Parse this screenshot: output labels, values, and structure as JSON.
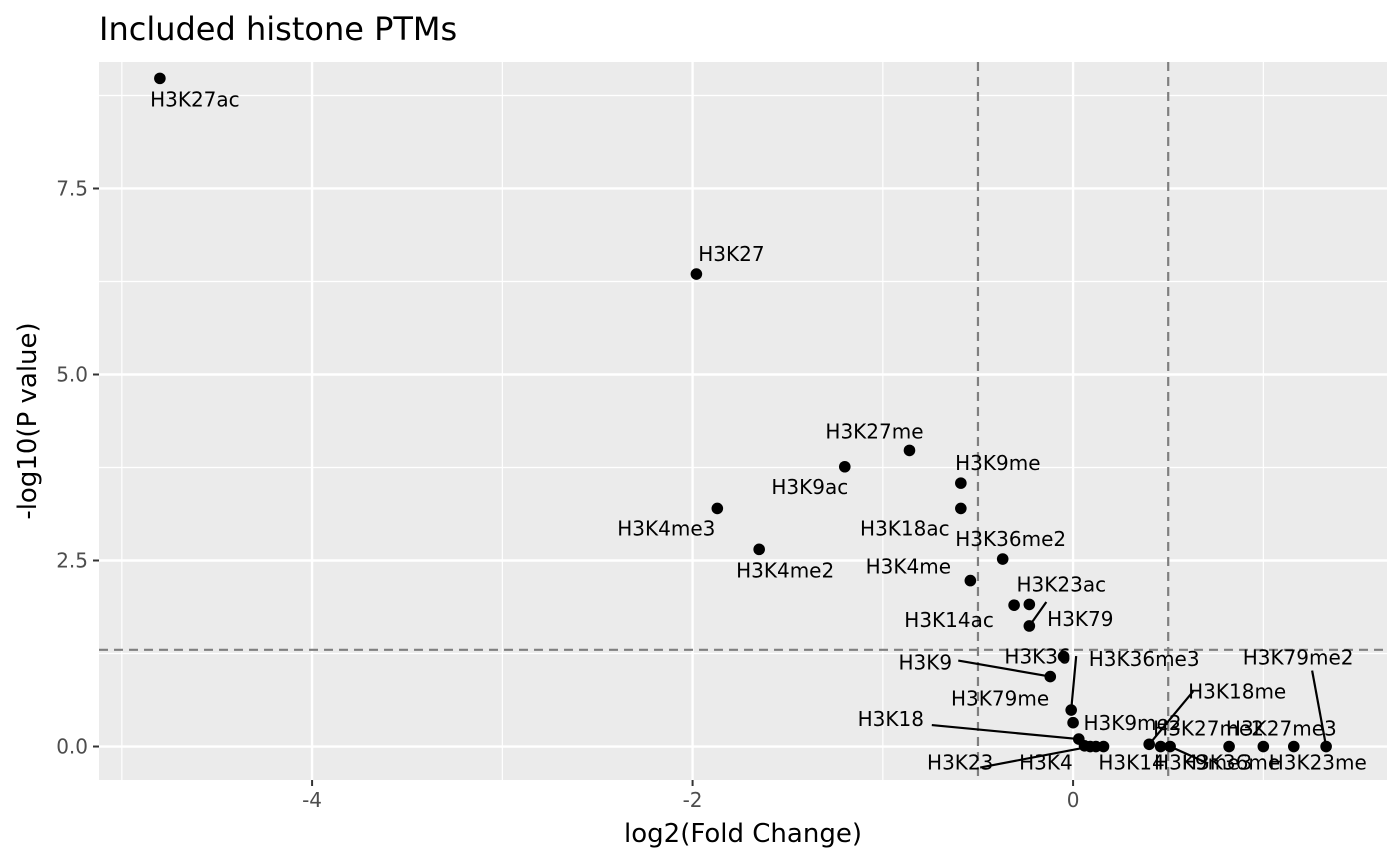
{
  "chart_data": {
    "type": "scatter",
    "title": "Included histone PTMs",
    "xlabel": "log2(Fold Change)",
    "ylabel": "-log10(P value)",
    "xlim": [
      -5.12,
      1.65
    ],
    "ylim": [
      -0.45,
      9.2
    ],
    "x_ticks": [
      {
        "value": -4,
        "label": "-4"
      },
      {
        "value": -2,
        "label": "-2"
      },
      {
        "value": 0,
        "label": "0"
      }
    ],
    "y_ticks": [
      {
        "value": 0,
        "label": "0.0"
      },
      {
        "value": 2.5,
        "label": "2.5"
      },
      {
        "value": 5,
        "label": "5.0"
      },
      {
        "value": 7.5,
        "label": "7.5"
      }
    ],
    "x_minor": [
      -5,
      -3,
      -1,
      1
    ],
    "y_minor": [
      1.25,
      3.75,
      6.25,
      8.75
    ],
    "grid": true,
    "background": "#ebebeb",
    "point_color": "#000000",
    "threshold_lines": {
      "x": [
        -0.5,
        0.5
      ],
      "y": 1.3,
      "style": "dashed",
      "color": "#7f7f7f"
    },
    "points": [
      {
        "name": "H3K27ac",
        "x": -4.8,
        "y": 8.98
      },
      {
        "name": "H3K27",
        "x": -1.98,
        "y": 6.35
      },
      {
        "name": "H3K27me",
        "x": -0.86,
        "y": 3.98
      },
      {
        "name": "H3K9ac",
        "x": -1.2,
        "y": 3.76
      },
      {
        "name": "H3K9me",
        "x": -0.59,
        "y": 3.54
      },
      {
        "name": "H3K4me3",
        "x": -1.87,
        "y": 3.2
      },
      {
        "name": "H3K18ac",
        "x": -0.59,
        "y": 3.2
      },
      {
        "name": "H3K4me2",
        "x": -1.65,
        "y": 2.65
      },
      {
        "name": "H3K36me2",
        "x": -0.37,
        "y": 2.52
      },
      {
        "name": "H3K4me",
        "x": -0.54,
        "y": 2.23
      },
      {
        "name": "H3K14ac",
        "x": -0.31,
        "y": 1.9
      },
      {
        "name": "H3K23ac",
        "x": -0.23,
        "y": 1.91
      },
      {
        "name": "H3K79",
        "x": -0.23,
        "y": 1.62
      },
      {
        "name": "H3K36",
        "x": -0.05,
        "y": 1.21
      },
      {
        "name": "H3K9",
        "x": -0.12,
        "y": 0.94
      },
      {
        "name": "H3K36me3",
        "x": -0.01,
        "y": 0.49
      },
      {
        "name": "H3K79me",
        "x": 0.0,
        "y": 0.32
      },
      {
        "name": "H3K18",
        "x": 0.03,
        "y": 0.1
      },
      {
        "name": "H3K9me2",
        "x": 0.06,
        "y": 0.01
      },
      {
        "name": "H3K23",
        "x": 0.09,
        "y": 0.0
      },
      {
        "name": "H3K4",
        "x": 0.12,
        "y": 0.0
      },
      {
        "name": "H3K14",
        "x": 0.16,
        "y": 0.0
      },
      {
        "name": "H3K18me",
        "x": 0.4,
        "y": 0.03
      },
      {
        "name": "H3K27me2",
        "x": 0.46,
        "y": 0.0
      },
      {
        "name": "H3K9me3",
        "x": 0.51,
        "y": 0.0
      },
      {
        "name": "H3K36me",
        "x": 0.82,
        "y": 0.0
      },
      {
        "name": "H3K79me2",
        "x": 1.33,
        "y": 0.0
      },
      {
        "name": "H3K27me3",
        "x": 1.0,
        "y": 0.0
      },
      {
        "name": "H3K23me",
        "x": 1.16,
        "y": 0.0
      }
    ]
  }
}
